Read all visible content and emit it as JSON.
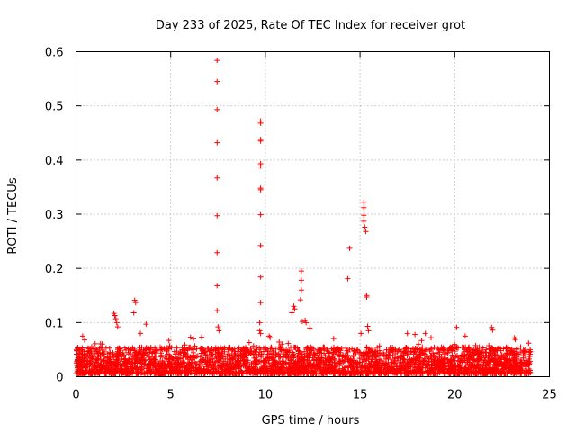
{
  "chart_data": {
    "type": "scatter",
    "title": "Day 233 of 2025, Rate Of TEC Index for receiver grot",
    "xlabel": "GPS time / hours",
    "ylabel": "ROTI / TECUs",
    "xlim": [
      0,
      25
    ],
    "ylim": [
      0,
      0.6
    ],
    "xticks": [
      "0",
      "5",
      "10",
      "15",
      "20",
      "25"
    ],
    "yticks": [
      "0",
      "0.1",
      "0.2",
      "0.3",
      "0.4",
      "0.5",
      "0.6"
    ],
    "grid": true,
    "marker": "plus",
    "color": "#ff0000",
    "baseline_range_hours": [
      0,
      24
    ],
    "baseline_typical_range": [
      0.005,
      0.055
    ],
    "series": [
      {
        "name": "ROTI",
        "x": [
          7.45,
          7.45,
          7.45,
          7.45,
          7.45,
          7.45,
          7.45,
          7.45,
          7.45,
          9.75,
          9.75,
          9.75,
          9.75,
          9.75,
          9.75,
          9.75,
          9.75,
          9.75,
          9.75,
          9.75,
          9.75,
          9.7,
          9.7,
          11.9,
          11.9,
          11.9,
          11.85,
          11.5,
          11.55,
          11.4,
          11.95,
          15.2,
          15.2,
          15.2,
          15.2,
          15.25,
          15.3,
          15.35,
          15.35,
          14.45,
          14.35,
          2.0,
          2.05,
          2.1,
          2.15,
          2.2,
          3.1,
          3.15,
          3.05,
          3.7,
          3.4,
          6.05,
          6.2,
          7.5,
          7.55,
          9.75,
          10.2,
          10.25,
          12.1,
          12.15,
          12.35,
          15.4,
          15.45,
          15.05,
          17.5,
          17.9,
          18.25,
          18.45,
          18.75,
          20.1,
          20.55,
          21.95,
          22.0,
          23.9,
          0.35,
          0.45
        ],
        "y": [
          0.584,
          0.545,
          0.493,
          0.432,
          0.367,
          0.297,
          0.229,
          0.168,
          0.122,
          0.472,
          0.468,
          0.438,
          0.435,
          0.393,
          0.389,
          0.348,
          0.345,
          0.299,
          0.242,
          0.184,
          0.137,
          0.1,
          0.085,
          0.195,
          0.178,
          0.16,
          0.142,
          0.13,
          0.125,
          0.118,
          0.102,
          0.322,
          0.312,
          0.298,
          0.287,
          0.276,
          0.268,
          0.15,
          0.147,
          0.237,
          0.181,
          0.117,
          0.113,
          0.107,
          0.1,
          0.092,
          0.141,
          0.137,
          0.118,
          0.097,
          0.08,
          0.073,
          0.07,
          0.092,
          0.085,
          0.08,
          0.075,
          0.072,
          0.104,
          0.1,
          0.09,
          0.093,
          0.085,
          0.08,
          0.08,
          0.078,
          0.067,
          0.08,
          0.072,
          0.091,
          0.075,
          0.091,
          0.086,
          0.062,
          0.075,
          0.068
        ]
      }
    ]
  }
}
